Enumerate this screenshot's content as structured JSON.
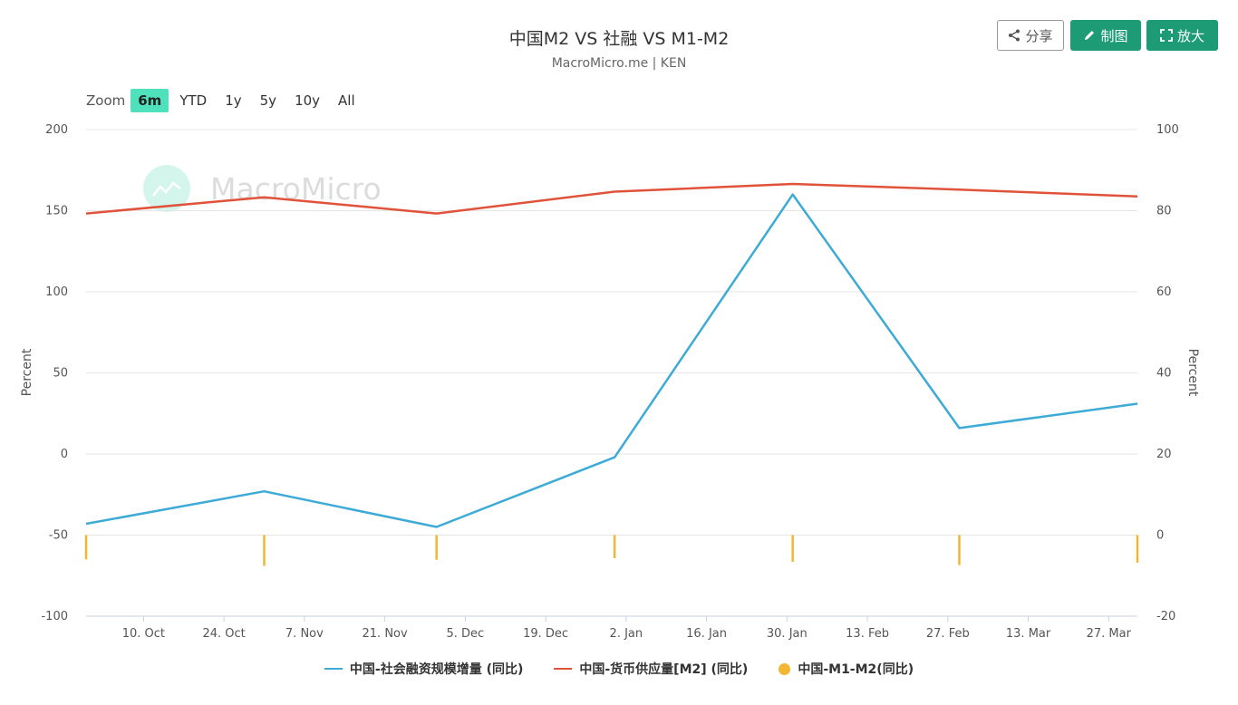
{
  "header": {
    "title": "中国M2 VS 社融 VS M1-M2",
    "subtitle": "MacroMicro.me | KEN"
  },
  "toolbar": {
    "share_label": "分享",
    "draw_label": "制图",
    "enlarge_label": "放大"
  },
  "zoom": {
    "label": "Zoom",
    "options": [
      "6m",
      "YTD",
      "1y",
      "5y",
      "10y",
      "All"
    ],
    "active": "6m"
  },
  "watermark": {
    "text": "MacroMicro"
  },
  "chart_data": {
    "type": "line",
    "x_ticks": [
      "10. Oct",
      "24. Oct",
      "7. Nov",
      "21. Nov",
      "5. Dec",
      "19. Dec",
      "2. Jan",
      "16. Jan",
      "30. Jan",
      "13. Feb",
      "27. Feb",
      "13. Mar",
      "27. Mar"
    ],
    "y_left": {
      "label": "Percent",
      "min": -100,
      "max": 200,
      "ticks": [
        200,
        150,
        100,
        50,
        0,
        -50,
        -100
      ]
    },
    "y_right": {
      "label": "Percent",
      "min": -20,
      "max": 100,
      "ticks": [
        100,
        80,
        60,
        40,
        20,
        0,
        -20
      ]
    },
    "grid": true,
    "legend_position": "bottom-center",
    "series": [
      {
        "name": "中国-社会融资规模增量 (同比)",
        "axis": "left",
        "color": "#3eaad6",
        "x": [
          "2023-09-30",
          "2023-10-31",
          "2023-11-30",
          "2023-12-31",
          "2024-01-31",
          "2024-02-29",
          "2024-03-31"
        ],
        "values": [
          -43,
          -23,
          -45,
          -2,
          160,
          16,
          31
        ]
      },
      {
        "name": "中国-货币供应量[M2] (同比)",
        "axis": "right",
        "color": "#e0533a",
        "x": [
          "2023-09-30",
          "2023-10-31",
          "2023-11-30",
          "2023-12-31",
          "2024-01-31",
          "2024-02-29",
          "2024-03-31"
        ],
        "values": [
          79.3,
          83.3,
          79.3,
          84.7,
          86.6,
          85.2,
          83.5
        ]
      },
      {
        "name": "中国-M1-M2(同比)",
        "axis": "right",
        "color": "#f2b632",
        "x": [
          "2023-09-30",
          "2023-10-31",
          "2023-11-30",
          "2023-12-31",
          "2024-01-31",
          "2024-02-29",
          "2024-03-31"
        ],
        "values": [
          -6.0,
          -7.6,
          -6.1,
          -5.7,
          -6.6,
          -7.4,
          -6.8
        ]
      }
    ]
  }
}
